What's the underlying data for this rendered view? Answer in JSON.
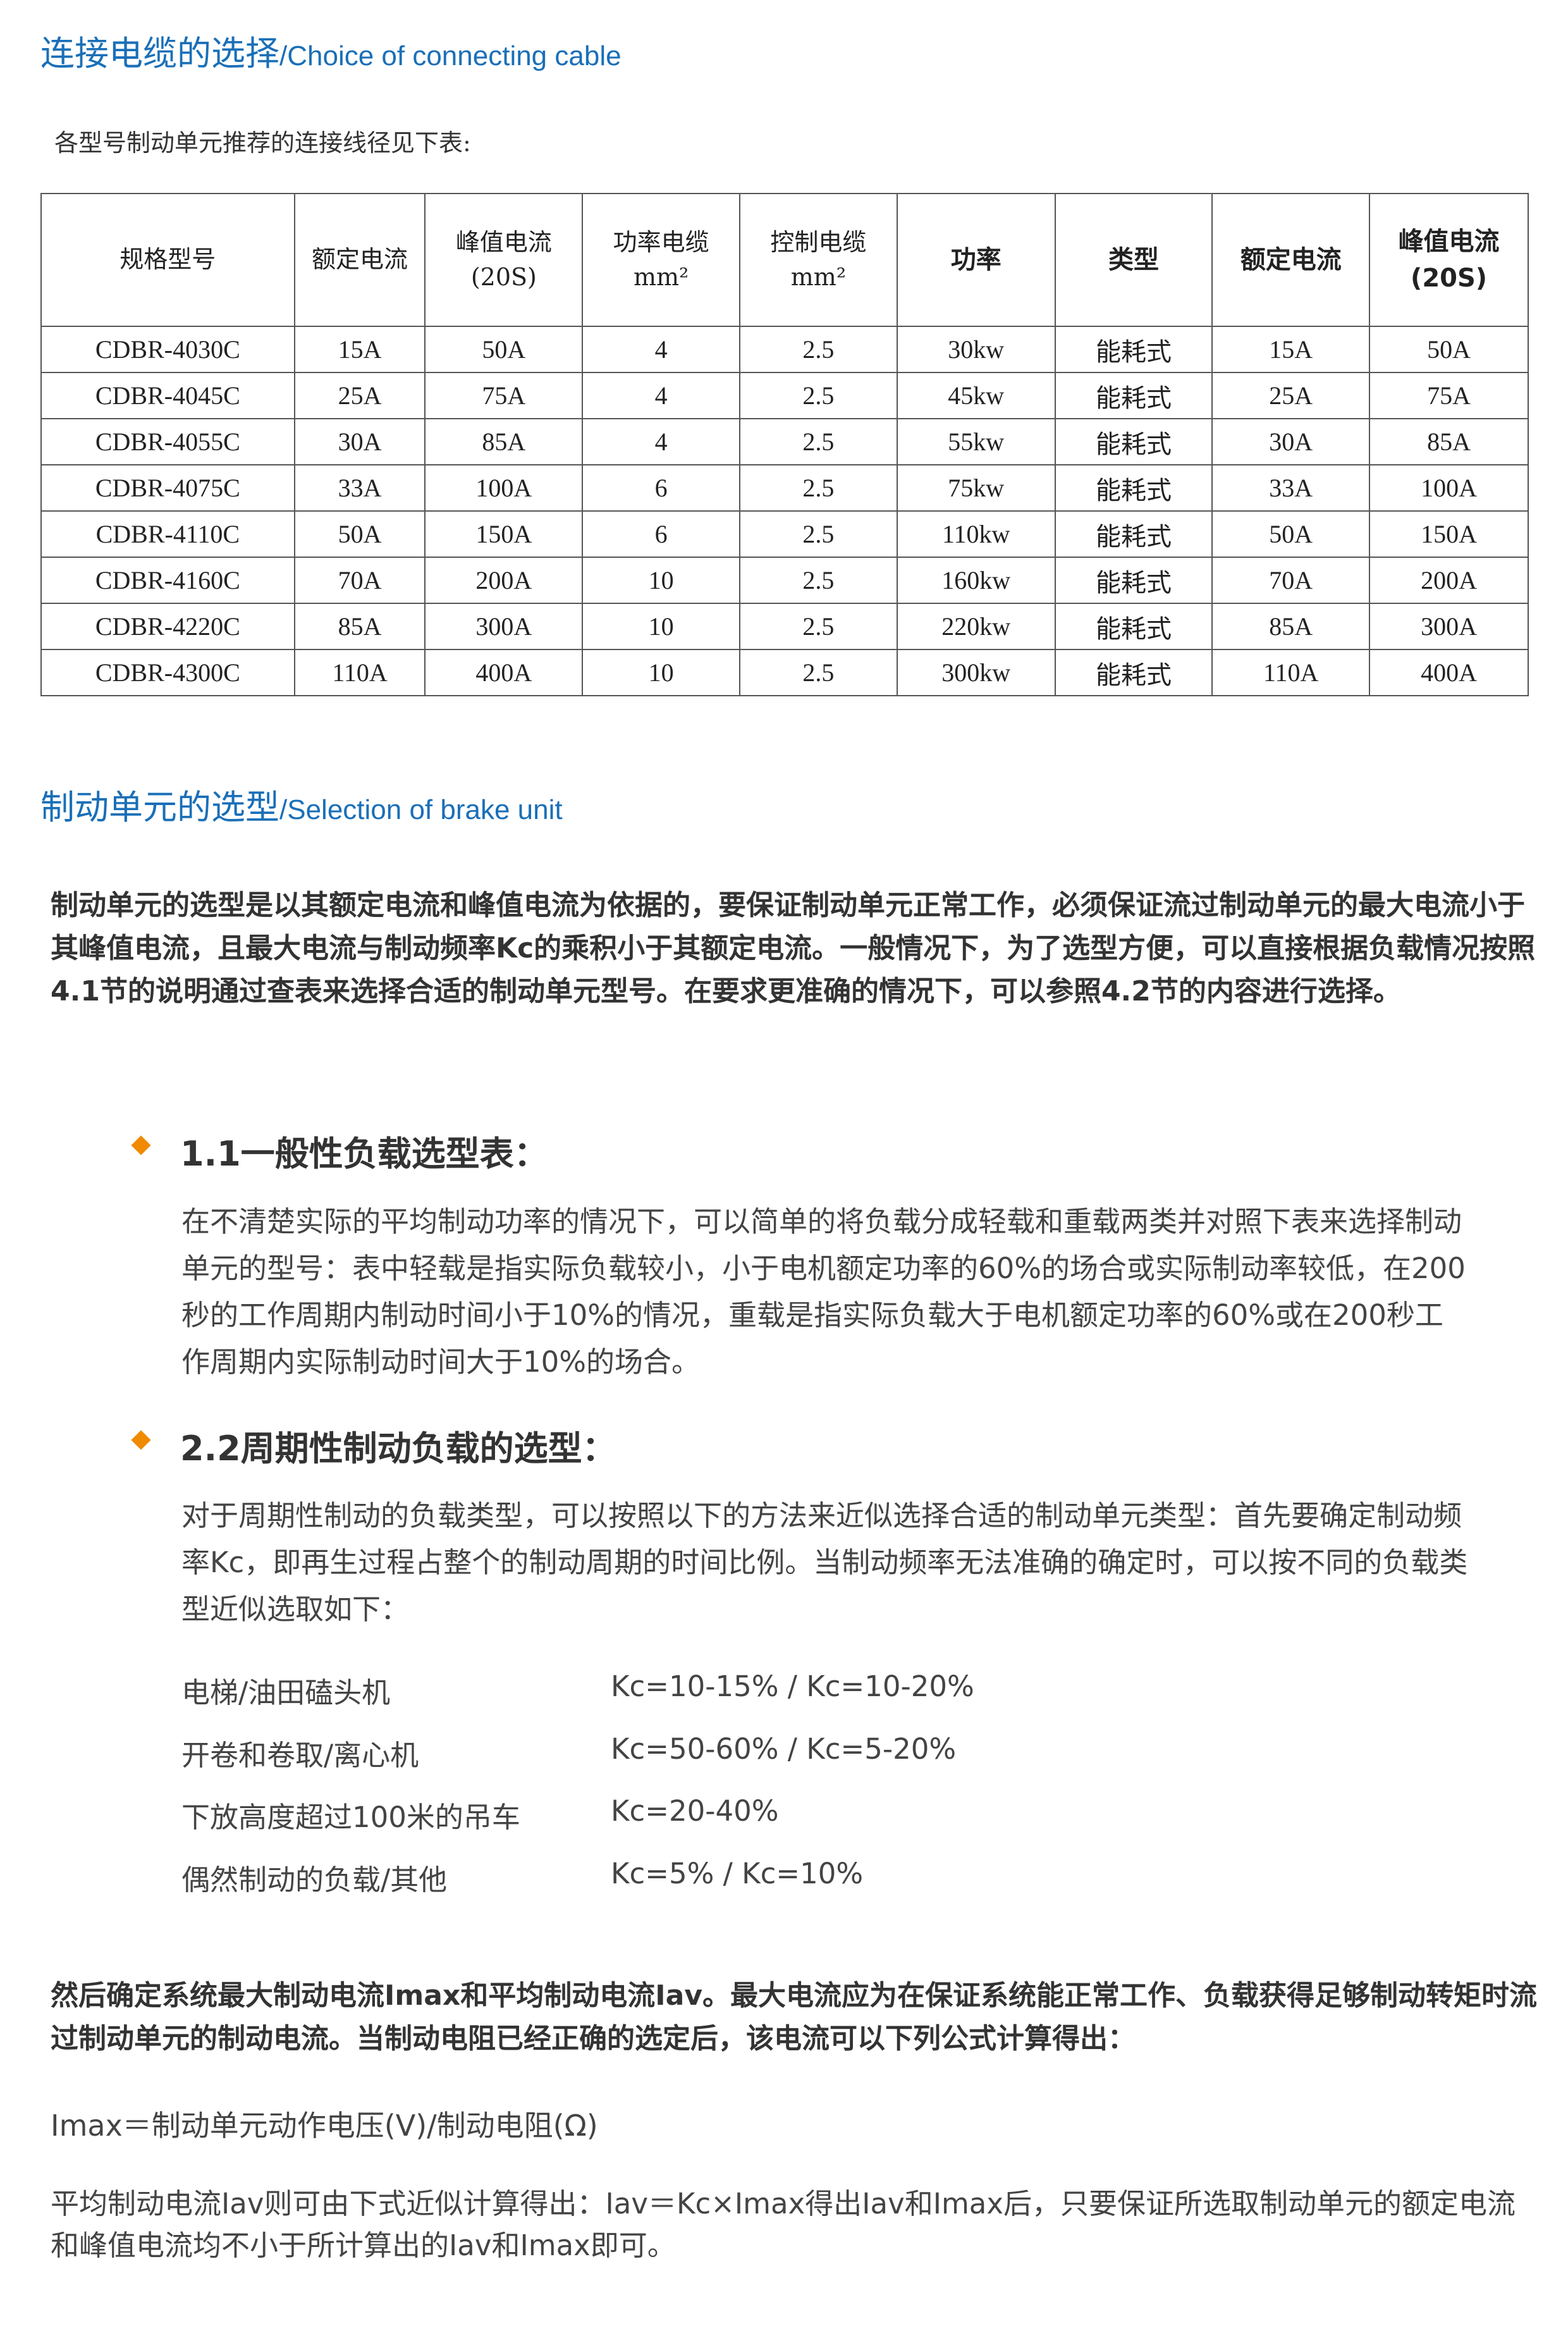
{
  "section1": {
    "title_cn": "连接电缆的选择",
    "title_en": "/Choice of connecting cable",
    "intro": "各型号制动单元推荐的连接线径见下表:"
  },
  "table": {
    "headers": [
      "规格型号",
      "额定电流",
      "峰值电流(20S)",
      "功率电缆 mm²",
      "控制电缆 mm²",
      "功率",
      "类型",
      "额定电流",
      "峰值电流(20S)"
    ],
    "rows": [
      [
        "CDBR-4030C",
        "15A",
        "50A",
        "4",
        "2.5",
        "30kw",
        "能耗式",
        "15A",
        "50A"
      ],
      [
        "CDBR-4045C",
        "25A",
        "75A",
        "4",
        "2.5",
        "45kw",
        "能耗式",
        "25A",
        "75A"
      ],
      [
        "CDBR-4055C",
        "30A",
        "85A",
        "4",
        "2.5",
        "55kw",
        "能耗式",
        "30A",
        "85A"
      ],
      [
        "CDBR-4075C",
        "33A",
        "100A",
        "6",
        "2.5",
        "75kw",
        "能耗式",
        "33A",
        "100A"
      ],
      [
        "CDBR-4110C",
        "50A",
        "150A",
        "6",
        "2.5",
        "110kw",
        "能耗式",
        "50A",
        "150A"
      ],
      [
        "CDBR-4160C",
        "70A",
        "200A",
        "10",
        "2.5",
        "160kw",
        "能耗式",
        "70A",
        "200A"
      ],
      [
        "CDBR-4220C",
        "85A",
        "300A",
        "10",
        "2.5",
        "220kw",
        "能耗式",
        "85A",
        "300A"
      ],
      [
        "CDBR-4300C",
        "110A",
        "400A",
        "10",
        "2.5",
        "300kw",
        "能耗式",
        "110A",
        "400A"
      ]
    ]
  },
  "section2": {
    "title_cn": "制动单元的选型",
    "title_en": "/Selection of brake unit",
    "paragraph": "制动单元的选型是以其额定电流和峰值电流为依据的，要保证制动单元正常工作，必须保证流过制动单元的最大电流小于其峰值电流，且最大电流与制动频率Kc的乘积小于其额定电流。一般情况下，为了选型方便，可以直接根据负载情况按照4.1节的说明通过查表来选择合适的制动单元型号。在要求更准确的情况下，可以参照4.2节的内容进行选择。"
  },
  "sub1": {
    "title": "1.1一般性负载选型表：",
    "text": "在不清楚实际的平均制动功率的情况下，可以简单的将负载分成轻载和重载两类并对照下表来选择制动单元的型号：表中轻载是指实际负载较小，小于电机额定功率的60%的场合或实际制动率较低，在200秒的工作周期内制动时间小于10%的情况，重载是指实际负载大于电机额定功率的60%或在200秒工作周期内实际制动时间大于10%的场合。"
  },
  "sub2": {
    "title": "2.2周期性制动负载的选型：",
    "text": "对于周期性制动的负载类型，可以按照以下的方法来近似选择合适的制动单元类型：首先要确定制动频率Kc，即再生过程占整个的制动周期的时间比例。当制动频率无法准确的确定时，可以按不同的负载类型近似选取如下：",
    "items": [
      {
        "label": "电梯/油田磕头机",
        "value": "Kc=10-15% / Kc=10-20%"
      },
      {
        "label": "开卷和卷取/离心机",
        "value": "Kc=50-60% / Kc=5-20%"
      },
      {
        "label": "下放高度超过100米的吊车",
        "value": "Kc=20-40%"
      },
      {
        "label": "偶然制动的负载/其他",
        "value": "Kc=5% / Kc=10%"
      }
    ]
  },
  "closing": {
    "para1": "然后确定系统最大制动电流Imax和平均制动电流Iav。最大电流应为在保证系统能正常工作、负载获得足够制动转矩时流过制动单元的制动电流。当制动电阻已经正确的选定后，该电流可以下列公式计算得出：",
    "formula": "Imax＝制动单元动作电压(V)/制动电阻(Ω)",
    "para2": "平均制动电流Iav则可由下式近似计算得出：Iav＝Kc×Imax得出Iav和Imax后，只要保证所选取制动单元的额定电流和峰值电流均不小于所计算出的Iav和Imax即可。"
  },
  "colors": {
    "accent": "#1a6fb8",
    "bullet": "#f08a00"
  }
}
